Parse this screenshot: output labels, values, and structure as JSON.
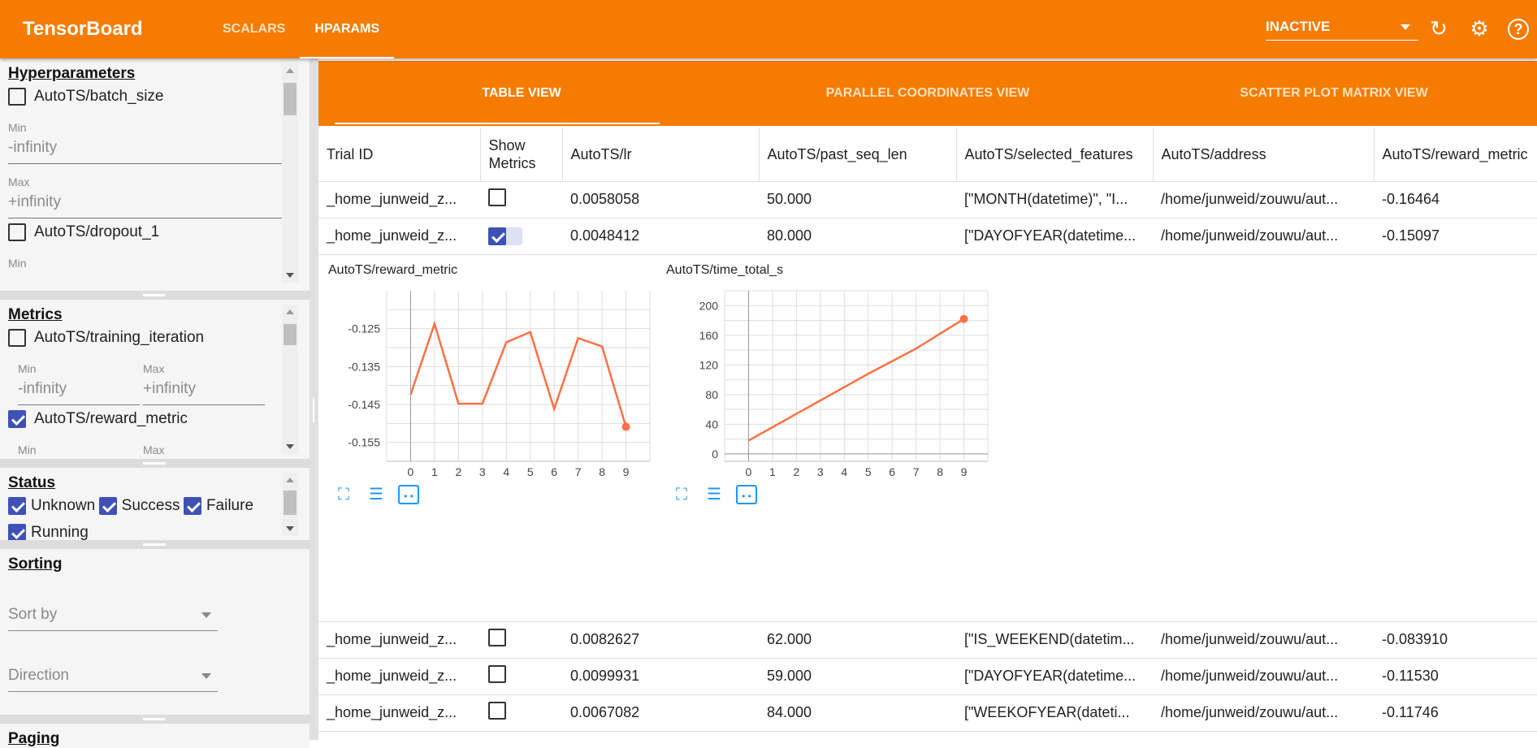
{
  "header": {
    "brand": "TensorBoard",
    "tabs": [
      "SCALARS",
      "HPARAMS"
    ],
    "active_tab": "HPARAMS",
    "run_selector": "INACTIVE",
    "icons": [
      "refresh-icon",
      "settings-icon",
      "help-icon"
    ]
  },
  "sidebar": {
    "hyperparameters": {
      "title": "Hyperparameters",
      "items": [
        {
          "label": "AutoTS/batch_size",
          "checked": false,
          "min_label": "Min",
          "min": "-infinity",
          "max_label": "Max",
          "max": "+infinity"
        },
        {
          "label": "AutoTS/dropout_1",
          "checked": false,
          "min_label": "Min"
        }
      ]
    },
    "metrics": {
      "title": "Metrics",
      "items": [
        {
          "label": "AutoTS/training_iteration",
          "checked": false,
          "min_label": "Min",
          "min": "-infinity",
          "max_label": "Max",
          "max": "+infinity"
        },
        {
          "label": "AutoTS/reward_metric",
          "checked": true,
          "min_label": "Min",
          "max_label": "Max"
        }
      ]
    },
    "status": {
      "title": "Status",
      "items": [
        {
          "label": "Unknown",
          "checked": true
        },
        {
          "label": "Success",
          "checked": true
        },
        {
          "label": "Failure",
          "checked": true
        },
        {
          "label": "Running",
          "checked": true
        }
      ]
    },
    "sorting": {
      "title": "Sorting",
      "sort_by": "Sort by",
      "direction": "Direction"
    },
    "paging": {
      "title": "Paging"
    }
  },
  "views": {
    "tabs": [
      "TABLE VIEW",
      "PARALLEL COORDINATES VIEW",
      "SCATTER PLOT MATRIX VIEW"
    ],
    "active": "TABLE VIEW"
  },
  "table": {
    "columns": [
      "Trial ID",
      "Show Metrics",
      "AutoTS/lr",
      "AutoTS/past_seq_len",
      "AutoTS/selected_features",
      "AutoTS/address",
      "AutoTS/reward_metric"
    ],
    "rows": [
      {
        "trial": "_home_junweid_z...",
        "show": false,
        "lr": "0.0058058",
        "past_seq_len": "50.000",
        "features": "[\"MONTH(datetime)\", \"I...",
        "address": "/home/junweid/zouwu/aut...",
        "reward": "-0.16464"
      },
      {
        "trial": "_home_junweid_z...",
        "show": true,
        "lr": "0.0048412",
        "past_seq_len": "80.000",
        "features": "[\"DAYOFYEAR(datetime...",
        "address": "/home/junweid/zouwu/aut...",
        "reward": "-0.15097"
      },
      {
        "trial": "_home_junweid_z...",
        "show": false,
        "lr": "0.0082627",
        "past_seq_len": "62.000",
        "features": "[\"IS_WEEKEND(datetim...",
        "address": "/home/junweid/zouwu/aut...",
        "reward": "-0.083910"
      },
      {
        "trial": "_home_junweid_z...",
        "show": false,
        "lr": "0.0099931",
        "past_seq_len": "59.000",
        "features": "[\"DAYOFYEAR(datetime...",
        "address": "/home/junweid/zouwu/aut...",
        "reward": "-0.11530"
      },
      {
        "trial": "_home_junweid_z...",
        "show": false,
        "lr": "0.0067082",
        "past_seq_len": "84.000",
        "features": "[\"WEEKOFYEAR(dateti...",
        "address": "/home/junweid/zouwu/aut...",
        "reward": "-0.11746"
      }
    ]
  },
  "chart_data": [
    {
      "type": "line",
      "title": "AutoTS/reward_metric",
      "x": [
        0,
        1,
        2,
        3,
        4,
        5,
        6,
        7,
        8,
        9
      ],
      "y": [
        -0.1424,
        -0.1237,
        -0.1448,
        -0.1448,
        -0.1286,
        -0.1259,
        -0.1462,
        -0.1275,
        -0.1297,
        -0.1509
      ],
      "xlim": [
        -1,
        10
      ],
      "ylim": [
        -0.16,
        -0.115
      ],
      "yticks": [
        -0.125,
        -0.135,
        -0.145,
        -0.155
      ],
      "xticks": [
        0,
        1,
        2,
        3,
        4,
        5,
        6,
        7,
        8,
        9
      ],
      "grid": true,
      "color": "#ff7043"
    },
    {
      "type": "line",
      "title": "AutoTS/time_total_s",
      "x": [
        0,
        1,
        2,
        3,
        4,
        5,
        6,
        7,
        8,
        9
      ],
      "y": [
        18,
        36,
        54,
        72,
        90,
        108,
        125,
        142,
        162,
        182
      ],
      "xlim": [
        -1,
        10
      ],
      "ylim": [
        -10,
        220
      ],
      "yticks": [
        0,
        40,
        80,
        120,
        160,
        200
      ],
      "xticks": [
        0,
        1,
        2,
        3,
        4,
        5,
        6,
        7,
        8,
        9
      ],
      "grid": true,
      "color": "#ff7043"
    }
  ],
  "chart_icons": [
    "fit-domain-icon",
    "toggle-log-scale-icon",
    "reset-zoom-icon"
  ]
}
